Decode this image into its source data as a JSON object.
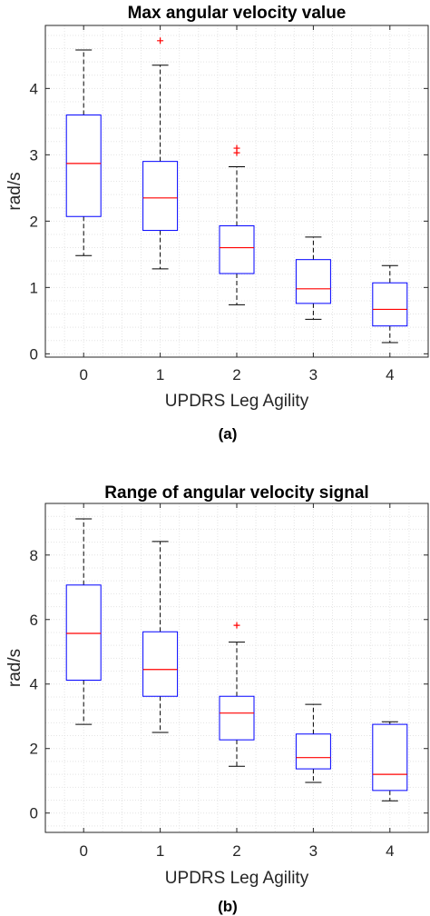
{
  "chart_data": [
    {
      "type": "box",
      "title": "Max angular velocity value",
      "xlabel": "UPDRS Leg Agility",
      "ylabel": "rad/s",
      "caption": "(a)",
      "categories": [
        "0",
        "1",
        "2",
        "3",
        "4"
      ],
      "ylim": [
        -0.05,
        4.95
      ],
      "yticks": [
        0,
        1,
        2,
        3,
        4
      ],
      "grid": "minor",
      "box_color": "#0000ff",
      "median_color": "#ff0000",
      "whisker_color": "#000000",
      "outlier_color": "#ff0000",
      "boxes": [
        {
          "category": "0",
          "whisker_low": 1.48,
          "q1": 2.07,
          "median": 2.87,
          "q3": 3.6,
          "whisker_high": 4.58,
          "outliers": []
        },
        {
          "category": "1",
          "whisker_low": 1.28,
          "q1": 1.86,
          "median": 2.35,
          "q3": 2.9,
          "whisker_high": 4.35,
          "outliers": [
            4.72
          ]
        },
        {
          "category": "2",
          "whisker_low": 0.74,
          "q1": 1.21,
          "median": 1.6,
          "q3": 1.93,
          "whisker_high": 2.82,
          "outliers": [
            3.03,
            3.1
          ]
        },
        {
          "category": "3",
          "whisker_low": 0.52,
          "q1": 0.76,
          "median": 0.98,
          "q3": 1.42,
          "whisker_high": 1.76,
          "outliers": []
        },
        {
          "category": "4",
          "whisker_low": 0.17,
          "q1": 0.42,
          "median": 0.67,
          "q3": 1.07,
          "whisker_high": 1.33,
          "outliers": []
        }
      ]
    },
    {
      "type": "box",
      "title": "Range of angular velocity signal",
      "xlabel": "UPDRS Leg Agility",
      "ylabel": "rad/s",
      "caption": "(b)",
      "categories": [
        "0",
        "1",
        "2",
        "3",
        "4"
      ],
      "ylim": [
        -0.6,
        9.6
      ],
      "yticks": [
        0,
        2,
        4,
        6,
        8
      ],
      "grid": "minor",
      "box_color": "#0000ff",
      "median_color": "#ff0000",
      "whisker_color": "#000000",
      "outlier_color": "#ff0000",
      "boxes": [
        {
          "category": "0",
          "whisker_low": 2.75,
          "q1": 4.12,
          "median": 5.57,
          "q3": 7.07,
          "whisker_high": 9.12,
          "outliers": []
        },
        {
          "category": "1",
          "whisker_low": 2.5,
          "q1": 3.62,
          "median": 4.45,
          "q3": 5.62,
          "whisker_high": 8.42,
          "outliers": []
        },
        {
          "category": "2",
          "whisker_low": 1.45,
          "q1": 2.27,
          "median": 3.1,
          "q3": 3.62,
          "whisker_high": 5.3,
          "outliers": [
            5.82
          ]
        },
        {
          "category": "3",
          "whisker_low": 0.95,
          "q1": 1.37,
          "median": 1.72,
          "q3": 2.45,
          "whisker_high": 3.37,
          "outliers": []
        },
        {
          "category": "4",
          "whisker_low": 0.38,
          "q1": 0.7,
          "median": 1.2,
          "q3": 2.75,
          "whisker_high": 2.83,
          "outliers": []
        }
      ]
    }
  ]
}
